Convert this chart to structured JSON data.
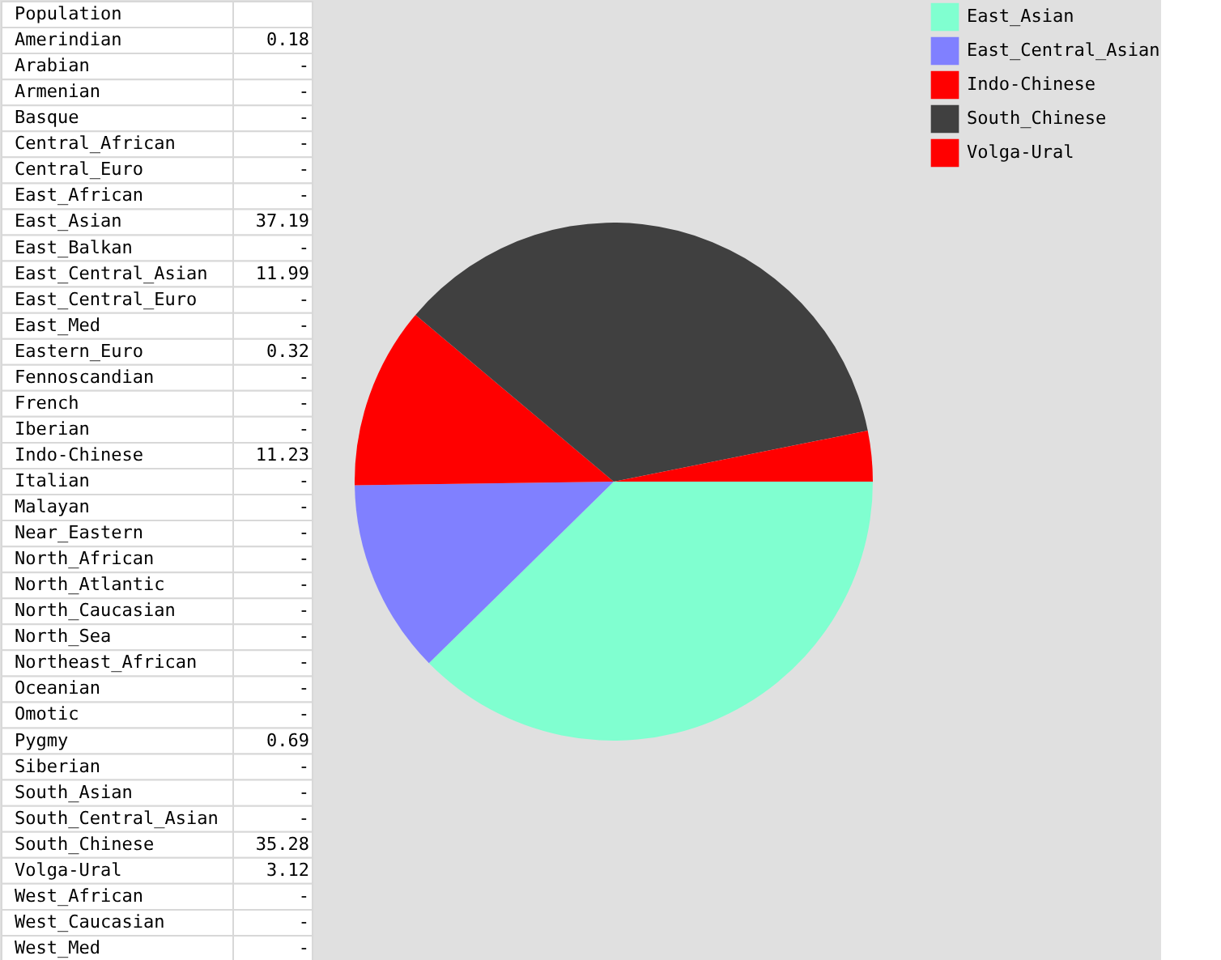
{
  "chart_data": [
    {
      "type": "other",
      "title": "Population",
      "categories": [
        "Amerindian",
        "Arabian",
        "Armenian",
        "Basque",
        "Central_African",
        "Central_Euro",
        "East_African",
        "East_Asian",
        "East_Balkan",
        "East_Central_Asian",
        "East_Central_Euro",
        "East_Med",
        "Eastern_Euro",
        "Fennoscandian",
        "French",
        "Iberian",
        "Indo-Chinese",
        "Italian",
        "Malayan",
        "Near_Eastern",
        "North_African",
        "North_Atlantic",
        "North_Caucasian",
        "North_Sea",
        "Northeast_African",
        "Oceanian",
        "Omotic",
        "Pygmy",
        "Siberian",
        "South_Asian",
        "South_Central_Asian",
        "South_Chinese",
        "Volga-Ural",
        "West_African",
        "West_Caucasian",
        "West_Med"
      ],
      "values": [
        0.18,
        null,
        null,
        null,
        null,
        null,
        null,
        37.19,
        null,
        11.99,
        null,
        null,
        0.32,
        null,
        null,
        null,
        11.23,
        null,
        null,
        null,
        null,
        null,
        null,
        null,
        null,
        null,
        null,
        0.69,
        null,
        null,
        null,
        35.28,
        3.12,
        null,
        null,
        null
      ],
      "value_labels": [
        "0.18",
        "-",
        "-",
        "-",
        "-",
        "-",
        "-",
        "37.19",
        "-",
        "11.99",
        "-",
        "-",
        "0.32",
        "-",
        "-",
        "-",
        "11.23",
        "-",
        "-",
        "-",
        "-",
        "-",
        "-",
        "-",
        "-",
        "-",
        "-",
        "0.69",
        "-",
        "-",
        "-",
        "35.28",
        "3.12",
        "-",
        "-",
        "-"
      ]
    },
    {
      "type": "pie",
      "categories": [
        "East_Asian",
        "East_Central_Asian",
        "Indo-Chinese",
        "South_Chinese",
        "Volga-Ural"
      ],
      "values": [
        37.19,
        11.99,
        11.23,
        35.28,
        3.12
      ],
      "colors": [
        "#80ffd0",
        "#8080ff",
        "#ff0000",
        "#404040",
        "#ff0000"
      ],
      "legend": "right"
    }
  ]
}
